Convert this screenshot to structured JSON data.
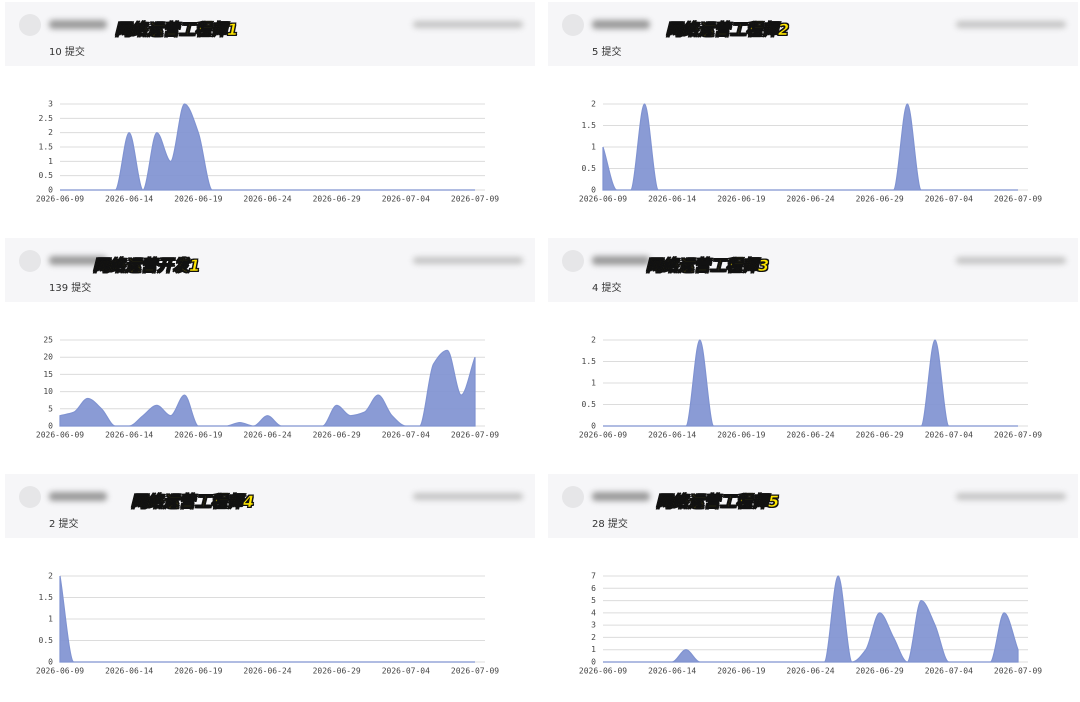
{
  "cards": [
    {
      "label": "网络运营工程师1",
      "commits": "10 提交",
      "chart_data": {
        "type": "area",
        "color": "#8093d1",
        "categories": [
          "2026-06-09",
          null,
          null,
          null,
          null,
          "2026-06-14",
          null,
          null,
          null,
          null,
          "2026-06-19",
          null,
          null,
          null,
          null,
          "2026-06-24",
          null,
          null,
          null,
          null,
          "2026-06-29",
          null,
          null,
          null,
          null,
          "2026-07-04",
          null,
          null,
          null,
          null,
          "2026-07-09"
        ],
        "values": [
          0,
          0,
          0,
          0,
          0,
          2,
          0,
          2,
          1,
          3,
          2,
          0,
          0,
          0,
          0,
          0,
          0,
          0,
          0,
          0,
          0,
          0,
          0,
          0,
          0,
          0,
          0,
          0,
          0,
          0,
          0
        ],
        "ylim": [
          0,
          3
        ],
        "yticks": [
          0,
          0.5,
          1,
          1.5,
          2,
          2.5,
          3
        ],
        "grid": true
      }
    },
    {
      "label": "网络运营工程师2",
      "commits": "5 提交",
      "chart_data": {
        "type": "area",
        "color": "#8093d1",
        "categories": [
          "2026-06-09",
          null,
          null,
          null,
          null,
          "2026-06-14",
          null,
          null,
          null,
          null,
          "2026-06-19",
          null,
          null,
          null,
          null,
          "2026-06-24",
          null,
          null,
          null,
          null,
          "2026-06-29",
          null,
          null,
          null,
          null,
          "2026-07-04",
          null,
          null,
          null,
          null,
          "2026-07-09"
        ],
        "values": [
          1,
          0,
          0,
          2,
          0,
          0,
          0,
          0,
          0,
          0,
          0,
          0,
          0,
          0,
          0,
          0,
          0,
          0,
          0,
          0,
          0,
          0,
          2,
          0,
          0,
          0,
          0,
          0,
          0,
          0,
          0
        ],
        "ylim": [
          0,
          2
        ],
        "yticks": [
          0,
          0.5,
          1,
          1.5,
          2
        ],
        "grid": true
      }
    },
    {
      "label": "网络运营开发1",
      "commits": "139 提交",
      "chart_data": {
        "type": "area",
        "color": "#8093d1",
        "categories": [
          "2026-06-09",
          null,
          null,
          null,
          null,
          "2026-06-14",
          null,
          null,
          null,
          null,
          "2026-06-19",
          null,
          null,
          null,
          null,
          "2026-06-24",
          null,
          null,
          null,
          null,
          "2026-06-29",
          null,
          null,
          null,
          null,
          "2026-07-04",
          null,
          null,
          null,
          null,
          "2026-07-09"
        ],
        "values": [
          3,
          4,
          8,
          5,
          0,
          0,
          3,
          6,
          3,
          9,
          0,
          0,
          0,
          1,
          0,
          3,
          0,
          0,
          0,
          0,
          6,
          3,
          4,
          9,
          3,
          0,
          0,
          18,
          22,
          9,
          20
        ],
        "ylim": [
          0,
          25
        ],
        "yticks": [
          0,
          5,
          10,
          15,
          20,
          25
        ],
        "grid": true
      }
    },
    {
      "label": "网络运营工程师3",
      "commits": "4 提交",
      "chart_data": {
        "type": "area",
        "color": "#8093d1",
        "categories": [
          "2026-06-09",
          null,
          null,
          null,
          null,
          "2026-06-14",
          null,
          null,
          null,
          null,
          "2026-06-19",
          null,
          null,
          null,
          null,
          "2026-06-24",
          null,
          null,
          null,
          null,
          "2026-06-29",
          null,
          null,
          null,
          null,
          "2026-07-04",
          null,
          null,
          null,
          null,
          "2026-07-09"
        ],
        "values": [
          0,
          0,
          0,
          0,
          0,
          0,
          0,
          2,
          0,
          0,
          0,
          0,
          0,
          0,
          0,
          0,
          0,
          0,
          0,
          0,
          0,
          0,
          0,
          0,
          2,
          0,
          0,
          0,
          0,
          0,
          0
        ],
        "ylim": [
          0,
          2
        ],
        "yticks": [
          0,
          0.5,
          1,
          1.5,
          2
        ],
        "grid": true
      }
    },
    {
      "label": "网络运营工程师4",
      "commits": "2 提交",
      "chart_data": {
        "type": "area",
        "color": "#8093d1",
        "categories": [
          "2026-06-09",
          null,
          null,
          null,
          null,
          "2026-06-14",
          null,
          null,
          null,
          null,
          "2026-06-19",
          null,
          null,
          null,
          null,
          "2026-06-24",
          null,
          null,
          null,
          null,
          "2026-06-29",
          null,
          null,
          null,
          null,
          "2026-07-04",
          null,
          null,
          null,
          null,
          "2026-07-09"
        ],
        "values": [
          2,
          0,
          0,
          0,
          0,
          0,
          0,
          0,
          0,
          0,
          0,
          0,
          0,
          0,
          0,
          0,
          0,
          0,
          0,
          0,
          0,
          0,
          0,
          0,
          0,
          0,
          0,
          0,
          0,
          0,
          0
        ],
        "ylim": [
          0,
          2
        ],
        "yticks": [
          0,
          0.5,
          1,
          1.5,
          2
        ],
        "grid": true
      }
    },
    {
      "label": "网络运营工程师5",
      "commits": "28 提交",
      "chart_data": {
        "type": "area",
        "color": "#8093d1",
        "categories": [
          "2026-06-09",
          null,
          null,
          null,
          null,
          "2026-06-14",
          null,
          null,
          null,
          null,
          "2026-06-19",
          null,
          null,
          null,
          null,
          "2026-06-24",
          null,
          null,
          null,
          null,
          "2026-06-29",
          null,
          null,
          null,
          null,
          "2026-07-04",
          null,
          null,
          null,
          null,
          "2026-07-09"
        ],
        "values": [
          0,
          0,
          0,
          0,
          0,
          0,
          1,
          0,
          0,
          0,
          0,
          0,
          0,
          0,
          0,
          0,
          0,
          7,
          0,
          1,
          4,
          2,
          0,
          5,
          3,
          0,
          0,
          0,
          0,
          4,
          1
        ],
        "ylim": [
          0,
          7
        ],
        "yticks": [
          0,
          1,
          2,
          3,
          4,
          5,
          6,
          7
        ],
        "grid": true
      }
    }
  ]
}
